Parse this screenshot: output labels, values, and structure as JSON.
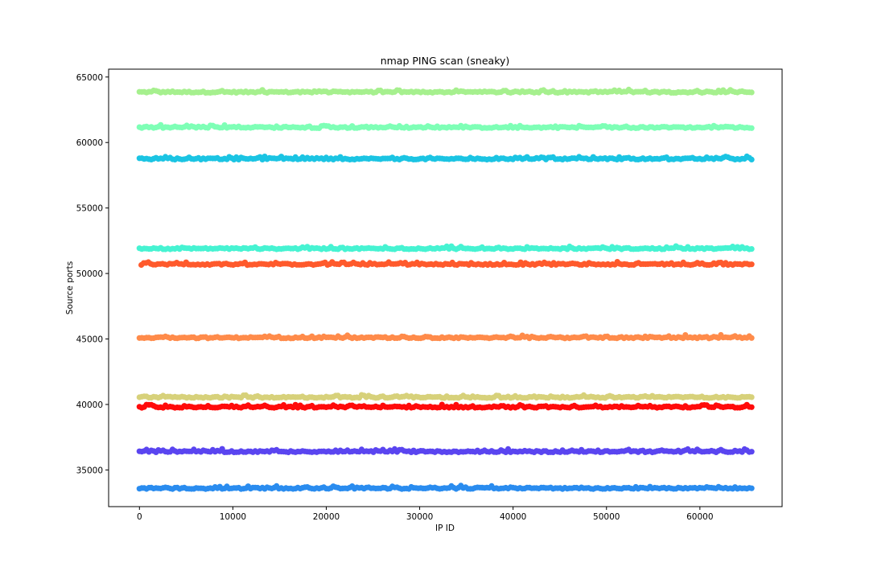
{
  "chart_data": {
    "type": "scatter",
    "title": "nmap PING scan (sneaky)",
    "xlabel": "IP ID",
    "ylabel": "Source ports",
    "xlim": [
      -3300,
      68800
    ],
    "ylim": [
      32200,
      65600
    ],
    "xticks": [
      0,
      10000,
      20000,
      30000,
      40000,
      50000,
      60000
    ],
    "yticks": [
      35000,
      40000,
      45000,
      50000,
      55000,
      60000,
      65000
    ],
    "grid": false,
    "legend": "none",
    "series": [
      {
        "color": "#a6f08e",
        "x_range": [
          0,
          65535
        ],
        "y_center": 63850,
        "spread": 110
      },
      {
        "color": "#7effb6",
        "x_range": [
          0,
          65535
        ],
        "y_center": 61150,
        "spread": 110
      },
      {
        "color": "#1bc4e3",
        "x_range": [
          0,
          65535
        ],
        "y_center": 58750,
        "spread": 110
      },
      {
        "color": "#46f3d2",
        "x_range": [
          0,
          65535
        ],
        "y_center": 51900,
        "spread": 110
      },
      {
        "color": "#ff5a2c",
        "x_range": [
          200,
          65535
        ],
        "y_center": 50700,
        "spread": 110
      },
      {
        "color": "#ff8b4a",
        "x_range": [
          0,
          65535
        ],
        "y_center": 45100,
        "spread": 110
      },
      {
        "color": "#d7d17a",
        "x_range": [
          0,
          65535
        ],
        "y_center": 40550,
        "spread": 110
      },
      {
        "color": "#ff0b0b",
        "x_range": [
          0,
          65535
        ],
        "y_center": 39800,
        "spread": 110
      },
      {
        "color": "#5a45f0",
        "x_range": [
          0,
          65535
        ],
        "y_center": 36400,
        "spread": 110
      },
      {
        "color": "#2a8cef",
        "x_range": [
          0,
          65535
        ],
        "y_center": 33600,
        "spread": 110
      }
    ]
  }
}
